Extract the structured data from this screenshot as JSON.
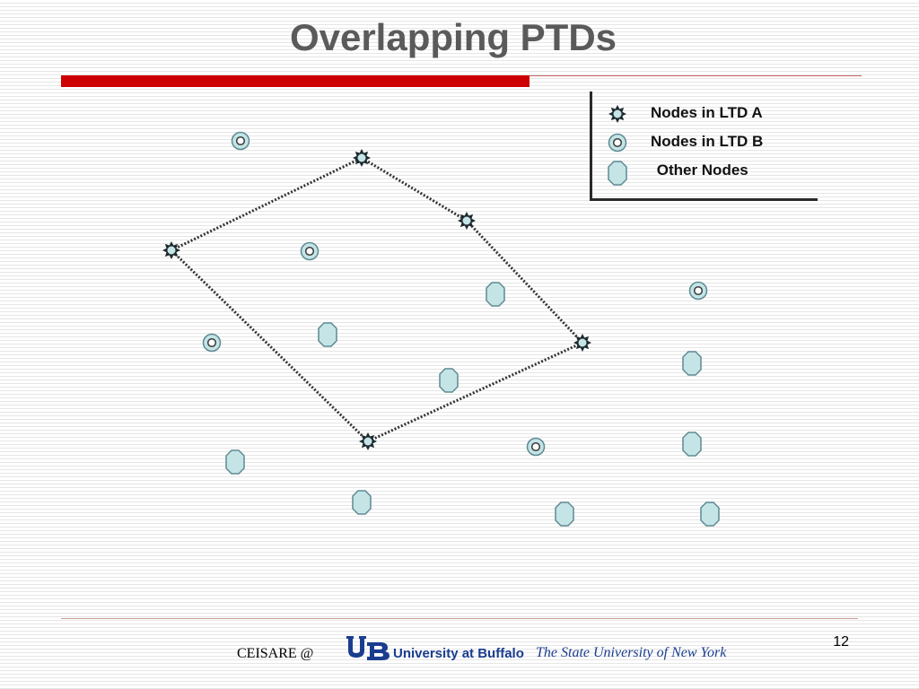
{
  "slide": {
    "title": "Overlapping PTDs",
    "page_number": "12"
  },
  "legend": {
    "items": [
      {
        "label": "Nodes in LTD A",
        "icon": "star-node-icon"
      },
      {
        "label": "Nodes in LTD B",
        "icon": "ring-node-icon"
      },
      {
        "label": " Other Nodes",
        "icon": "octagon-node-icon"
      }
    ]
  },
  "footer": {
    "org": "CEISARE @",
    "university": "University at Buffalo",
    "subtitle": "The State University of New York"
  },
  "colors": {
    "accent_red": "#cc0000",
    "title_gray": "#5a5a5a",
    "node_fill": "#c4e4e6",
    "node_stroke": "#5e8a92",
    "brand_blue": "#1a3d8f"
  }
}
